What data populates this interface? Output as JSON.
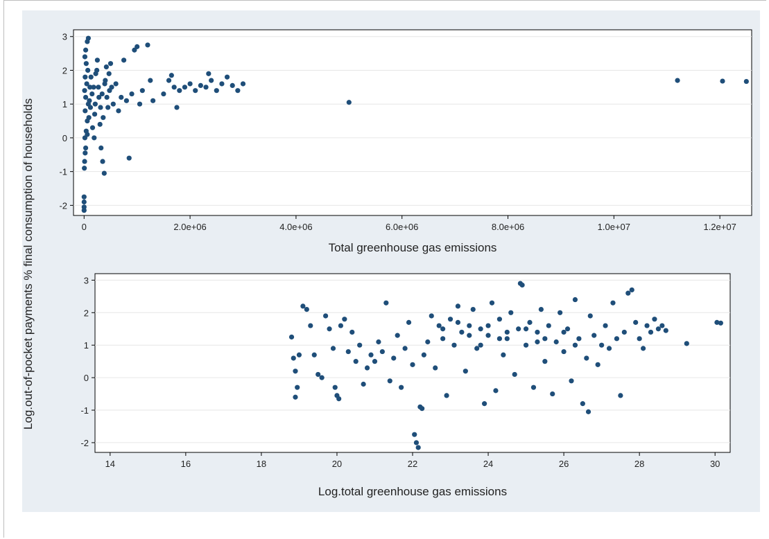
{
  "chart_data": [
    {
      "type": "scatter",
      "title": "",
      "xlabel": "Total greenhouse gas emissions",
      "ylabel": "Log.out-of-pocket payments % final consumption of households",
      "xlim": [
        -200000,
        12600000
      ],
      "ylim": [
        -2.3,
        3.2
      ],
      "x_ticks": [
        0,
        2000000,
        4000000,
        6000000,
        8000000,
        10000000,
        12000000
      ],
      "x_tick_labels": [
        "0",
        "2.0e+06",
        "4.0e+06",
        "6.0e+06",
        "8.0e+06",
        "1.0e+07",
        "1.2e+07"
      ],
      "y_ticks": [
        -2,
        -1,
        0,
        1,
        2,
        3
      ],
      "y_tick_labels": [
        "-2",
        "-1",
        "0",
        "1",
        "2",
        "3"
      ],
      "grid": true,
      "marker_color": "#1f4e79",
      "points": [
        [
          0,
          -1.75
        ],
        [
          0,
          -1.9
        ],
        [
          0,
          -2.05
        ],
        [
          0,
          -2.15
        ],
        [
          5000,
          -0.9
        ],
        [
          10000,
          -0.7
        ],
        [
          20000,
          -0.45
        ],
        [
          30000,
          -0.3
        ],
        [
          15000,
          0.0
        ],
        [
          40000,
          0.2
        ],
        [
          60000,
          0.5
        ],
        [
          20000,
          0.8
        ],
        [
          80000,
          1.0
        ],
        [
          30000,
          1.2
        ],
        [
          10000,
          1.4
        ],
        [
          50000,
          1.6
        ],
        [
          20000,
          1.8
        ],
        [
          70000,
          2.0
        ],
        [
          40000,
          2.2
        ],
        [
          15000,
          2.4
        ],
        [
          30000,
          2.6
        ],
        [
          60000,
          2.85
        ],
        [
          80000,
          2.95
        ],
        [
          100000,
          1.1
        ],
        [
          120000,
          0.9
        ],
        [
          150000,
          1.3
        ],
        [
          180000,
          1.5
        ],
        [
          200000,
          0.7
        ],
        [
          220000,
          1.9
        ],
        [
          250000,
          2.3
        ],
        [
          280000,
          1.2
        ],
        [
          300000,
          0.4
        ],
        [
          320000,
          -0.3
        ],
        [
          350000,
          -0.7
        ],
        [
          380000,
          -1.05
        ],
        [
          400000,
          1.7
        ],
        [
          420000,
          2.1
        ],
        [
          450000,
          0.9
        ],
        [
          480000,
          1.4
        ],
        [
          500000,
          2.2
        ],
        [
          550000,
          1.0
        ],
        [
          600000,
          1.6
        ],
        [
          650000,
          0.8
        ],
        [
          700000,
          1.2
        ],
        [
          750000,
          2.3
        ],
        [
          800000,
          1.1
        ],
        [
          850000,
          -0.6
        ],
        [
          900000,
          1.3
        ],
        [
          950000,
          2.6
        ],
        [
          1000000,
          2.7
        ],
        [
          1050000,
          1.0
        ],
        [
          1100000,
          1.4
        ],
        [
          1200000,
          2.75
        ],
        [
          1250000,
          1.7
        ],
        [
          1300000,
          1.1
        ],
        [
          1600000,
          1.7
        ],
        [
          1650000,
          1.85
        ],
        [
          1700000,
          1.5
        ],
        [
          1750000,
          0.9
        ],
        [
          1800000,
          1.4
        ],
        [
          1900000,
          1.5
        ],
        [
          2000000,
          1.6
        ],
        [
          2100000,
          1.4
        ],
        [
          2200000,
          1.55
        ],
        [
          2300000,
          1.5
        ],
        [
          2400000,
          1.7
        ],
        [
          2500000,
          1.4
        ],
        [
          2600000,
          1.6
        ],
        [
          2700000,
          1.8
        ],
        [
          2800000,
          1.55
        ],
        [
          2900000,
          1.4
        ],
        [
          3000000,
          1.6
        ],
        [
          2350000,
          1.9
        ],
        [
          1500000,
          1.3
        ],
        [
          5000000,
          1.05
        ],
        [
          11200000,
          1.7
        ],
        [
          12050000,
          1.68
        ],
        [
          12500000,
          1.67
        ],
        [
          60000,
          0.1
        ],
        [
          90000,
          0.6
        ],
        [
          110000,
          1.5
        ],
        [
          130000,
          1.8
        ],
        [
          160000,
          0.3
        ],
        [
          190000,
          0.0
        ],
        [
          210000,
          1.0
        ],
        [
          240000,
          2.0
        ],
        [
          270000,
          1.5
        ],
        [
          310000,
          0.9
        ],
        [
          340000,
          1.3
        ],
        [
          360000,
          0.6
        ],
        [
          390000,
          1.6
        ],
        [
          430000,
          1.2
        ],
        [
          470000,
          1.9
        ],
        [
          520000,
          1.5
        ]
      ]
    },
    {
      "type": "scatter",
      "title": "",
      "xlabel": "Log.total greenhouse gas emissions",
      "ylabel": "Log.out-of-pocket payments % final consumption of households",
      "xlim": [
        13.6,
        30.4
      ],
      "ylim": [
        -2.3,
        3.2
      ],
      "x_ticks": [
        14,
        16,
        18,
        20,
        22,
        24,
        26,
        28,
        30
      ],
      "x_tick_labels": [
        "14",
        "16",
        "18",
        "20",
        "22",
        "24",
        "26",
        "28",
        "30"
      ],
      "y_ticks": [
        -2,
        -1,
        0,
        1,
        2,
        3
      ],
      "y_tick_labels": [
        "-2",
        "-1",
        "0",
        "1",
        "2",
        "3"
      ],
      "grid": true,
      "marker_color": "#1f4e79",
      "points": [
        [
          18.8,
          1.25
        ],
        [
          18.85,
          0.6
        ],
        [
          18.9,
          0.2
        ],
        [
          18.95,
          -0.3
        ],
        [
          18.9,
          -0.6
        ],
        [
          19.0,
          0.7
        ],
        [
          19.1,
          2.2
        ],
        [
          19.2,
          2.1
        ],
        [
          19.3,
          1.6
        ],
        [
          19.4,
          0.7
        ],
        [
          19.5,
          0.1
        ],
        [
          19.6,
          0.0
        ],
        [
          19.7,
          1.9
        ],
        [
          19.8,
          1.5
        ],
        [
          19.9,
          0.9
        ],
        [
          19.95,
          -0.3
        ],
        [
          20.0,
          -0.55
        ],
        [
          20.05,
          -0.65
        ],
        [
          20.1,
          1.6
        ],
        [
          20.2,
          1.8
        ],
        [
          20.3,
          0.8
        ],
        [
          20.4,
          1.4
        ],
        [
          20.5,
          0.5
        ],
        [
          20.6,
          1.0
        ],
        [
          20.7,
          -0.2
        ],
        [
          20.8,
          0.3
        ],
        [
          20.9,
          0.7
        ],
        [
          21.0,
          0.5
        ],
        [
          21.1,
          1.1
        ],
        [
          21.2,
          0.8
        ],
        [
          21.3,
          2.3
        ],
        [
          21.4,
          -0.1
        ],
        [
          21.5,
          0.6
        ],
        [
          21.6,
          1.3
        ],
        [
          21.7,
          -0.3
        ],
        [
          21.8,
          0.9
        ],
        [
          21.9,
          1.7
        ],
        [
          22.0,
          0.4
        ],
        [
          22.05,
          -1.75
        ],
        [
          22.1,
          -2.0
        ],
        [
          22.15,
          -2.15
        ],
        [
          22.2,
          -0.9
        ],
        [
          22.25,
          -0.95
        ],
        [
          22.3,
          0.7
        ],
        [
          22.4,
          1.1
        ],
        [
          22.5,
          1.9
        ],
        [
          22.6,
          0.3
        ],
        [
          22.7,
          1.6
        ],
        [
          22.8,
          1.2
        ],
        [
          22.9,
          -0.55
        ],
        [
          23.0,
          1.8
        ],
        [
          23.1,
          1.0
        ],
        [
          23.2,
          2.2
        ],
        [
          23.3,
          1.4
        ],
        [
          23.4,
          0.2
        ],
        [
          23.5,
          1.6
        ],
        [
          23.6,
          2.1
        ],
        [
          23.7,
          0.9
        ],
        [
          23.8,
          1.5
        ],
        [
          23.9,
          -0.8
        ],
        [
          24.0,
          1.3
        ],
        [
          24.1,
          2.3
        ],
        [
          24.2,
          -0.4
        ],
        [
          24.3,
          1.8
        ],
        [
          24.4,
          0.7
        ],
        [
          24.5,
          1.2
        ],
        [
          24.6,
          2.0
        ],
        [
          24.7,
          0.1
        ],
        [
          24.8,
          1.5
        ],
        [
          24.85,
          2.9
        ],
        [
          24.9,
          2.85
        ],
        [
          25.0,
          1.0
        ],
        [
          25.1,
          1.7
        ],
        [
          25.2,
          -0.3
        ],
        [
          25.3,
          1.4
        ],
        [
          25.4,
          2.1
        ],
        [
          25.5,
          0.5
        ],
        [
          25.6,
          1.6
        ],
        [
          25.7,
          -0.5
        ],
        [
          25.8,
          1.1
        ],
        [
          25.9,
          2.0
        ],
        [
          26.0,
          0.8
        ],
        [
          26.1,
          1.5
        ],
        [
          26.2,
          -0.1
        ],
        [
          26.3,
          2.4
        ],
        [
          26.4,
          1.2
        ],
        [
          26.5,
          -0.8
        ],
        [
          26.6,
          0.6
        ],
        [
          26.65,
          -1.05
        ],
        [
          26.7,
          1.9
        ],
        [
          26.8,
          1.3
        ],
        [
          26.9,
          0.4
        ],
        [
          27.0,
          1.0
        ],
        [
          27.1,
          1.6
        ],
        [
          27.2,
          0.9
        ],
        [
          27.3,
          2.3
        ],
        [
          27.4,
          1.2
        ],
        [
          27.5,
          -0.55
        ],
        [
          27.6,
          1.4
        ],
        [
          27.7,
          2.6
        ],
        [
          27.8,
          2.7
        ],
        [
          27.9,
          1.7
        ],
        [
          28.0,
          1.2
        ],
        [
          28.1,
          0.9
        ],
        [
          28.2,
          1.6
        ],
        [
          28.3,
          1.4
        ],
        [
          28.4,
          1.8
        ],
        [
          28.5,
          1.5
        ],
        [
          28.6,
          1.6
        ],
        [
          28.7,
          1.45
        ],
        [
          29.25,
          1.05
        ],
        [
          30.05,
          1.7
        ],
        [
          30.15,
          1.68
        ],
        [
          23.5,
          1.3
        ],
        [
          24.0,
          1.6
        ],
        [
          24.5,
          1.4
        ],
        [
          25.0,
          1.5
        ],
        [
          25.5,
          1.2
        ],
        [
          26.0,
          1.4
        ],
        [
          23.8,
          1.0
        ],
        [
          24.3,
          1.2
        ],
        [
          25.3,
          1.1
        ],
        [
          26.3,
          1.0
        ],
        [
          22.8,
          1.5
        ],
        [
          23.2,
          1.7
        ]
      ]
    }
  ]
}
